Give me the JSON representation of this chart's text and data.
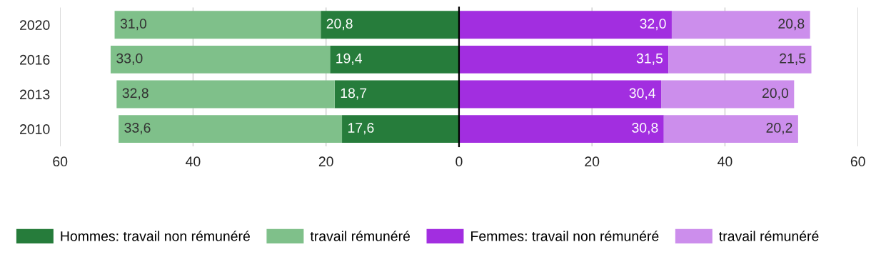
{
  "chart_data": [
    {
      "type": "bar",
      "orientation": "horizontal",
      "stacked": true,
      "categories": [
        "2020",
        "2016",
        "2013",
        "2010"
      ],
      "series": [
        {
          "name": "Hommes: travail non rémunéré",
          "color": "#267c3b",
          "values": [
            20.8,
            19.4,
            18.7,
            17.6
          ],
          "value_labels": [
            "20,8",
            "19,4",
            "18,7",
            "17,6"
          ]
        },
        {
          "name": "travail rémunéré",
          "color": "#7fc08a",
          "values": [
            31.0,
            33.0,
            32.8,
            33.6
          ],
          "value_labels": [
            "31,0",
            "33,0",
            "32,8",
            "33,6"
          ]
        }
      ],
      "xlim": [
        60,
        0
      ],
      "xticks": [
        60,
        40,
        20
      ],
      "grid": "x",
      "legend": "bottom"
    },
    {
      "type": "bar",
      "orientation": "horizontal",
      "stacked": true,
      "categories": [
        "2020",
        "2016",
        "2013",
        "2010"
      ],
      "series": [
        {
          "name": "Femmes: travail non rémunéré",
          "color": "#a22ee0",
          "values": [
            32.0,
            31.5,
            30.4,
            30.8
          ],
          "value_labels": [
            "32,0",
            "31,5",
            "30,4",
            "30,8"
          ]
        },
        {
          "name": "travail rémunéré",
          "color": "#cc8eec",
          "values": [
            20.8,
            21.5,
            20.0,
            20.2
          ],
          "value_labels": [
            "20,8",
            "21,5",
            "20,0",
            "20,2"
          ]
        }
      ],
      "xlim": [
        0,
        60
      ],
      "xticks": [
        0,
        20,
        40,
        60
      ],
      "tick_labels": "x",
      "grid": "x",
      "legend": "bottom"
    }
  ]
}
